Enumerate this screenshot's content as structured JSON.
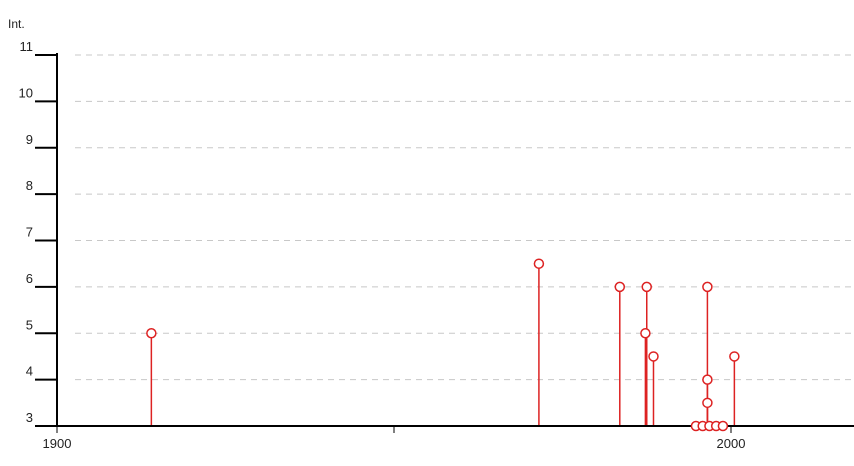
{
  "chart_data": {
    "type": "stem",
    "ylabel": "Int.",
    "xlim": [
      1900,
      2017
    ],
    "ylim": [
      3,
      11
    ],
    "x_ticks": [
      1900,
      1950,
      2000
    ],
    "x_tick_labels": [
      "1900",
      "",
      "2000"
    ],
    "y_ticks": [
      3,
      4,
      5,
      6,
      7,
      8,
      9,
      10,
      11
    ],
    "grid": true,
    "colors": {
      "stem": "#dd2222",
      "axis": "#000000",
      "grid": "#c8c8c8"
    },
    "points": [
      {
        "x": 1914,
        "y": 5
      },
      {
        "x": 1971.5,
        "y": 6.5
      },
      {
        "x": 1983.5,
        "y": 6
      },
      {
        "x": 1987.5,
        "y": 6
      },
      {
        "x": 1987.3,
        "y": 5
      },
      {
        "x": 1988.5,
        "y": 4.5
      },
      {
        "x": 1996.5,
        "y": 6
      },
      {
        "x": 1996.5,
        "y": 4
      },
      {
        "x": 1996.5,
        "y": 3.5
      },
      {
        "x": 2000.5,
        "y": 4.5
      },
      {
        "x": 1994.8,
        "y": 3
      },
      {
        "x": 1995.8,
        "y": 3
      },
      {
        "x": 1996.8,
        "y": 3
      },
      {
        "x": 1997.8,
        "y": 3
      },
      {
        "x": 1998.8,
        "y": 3
      }
    ]
  }
}
